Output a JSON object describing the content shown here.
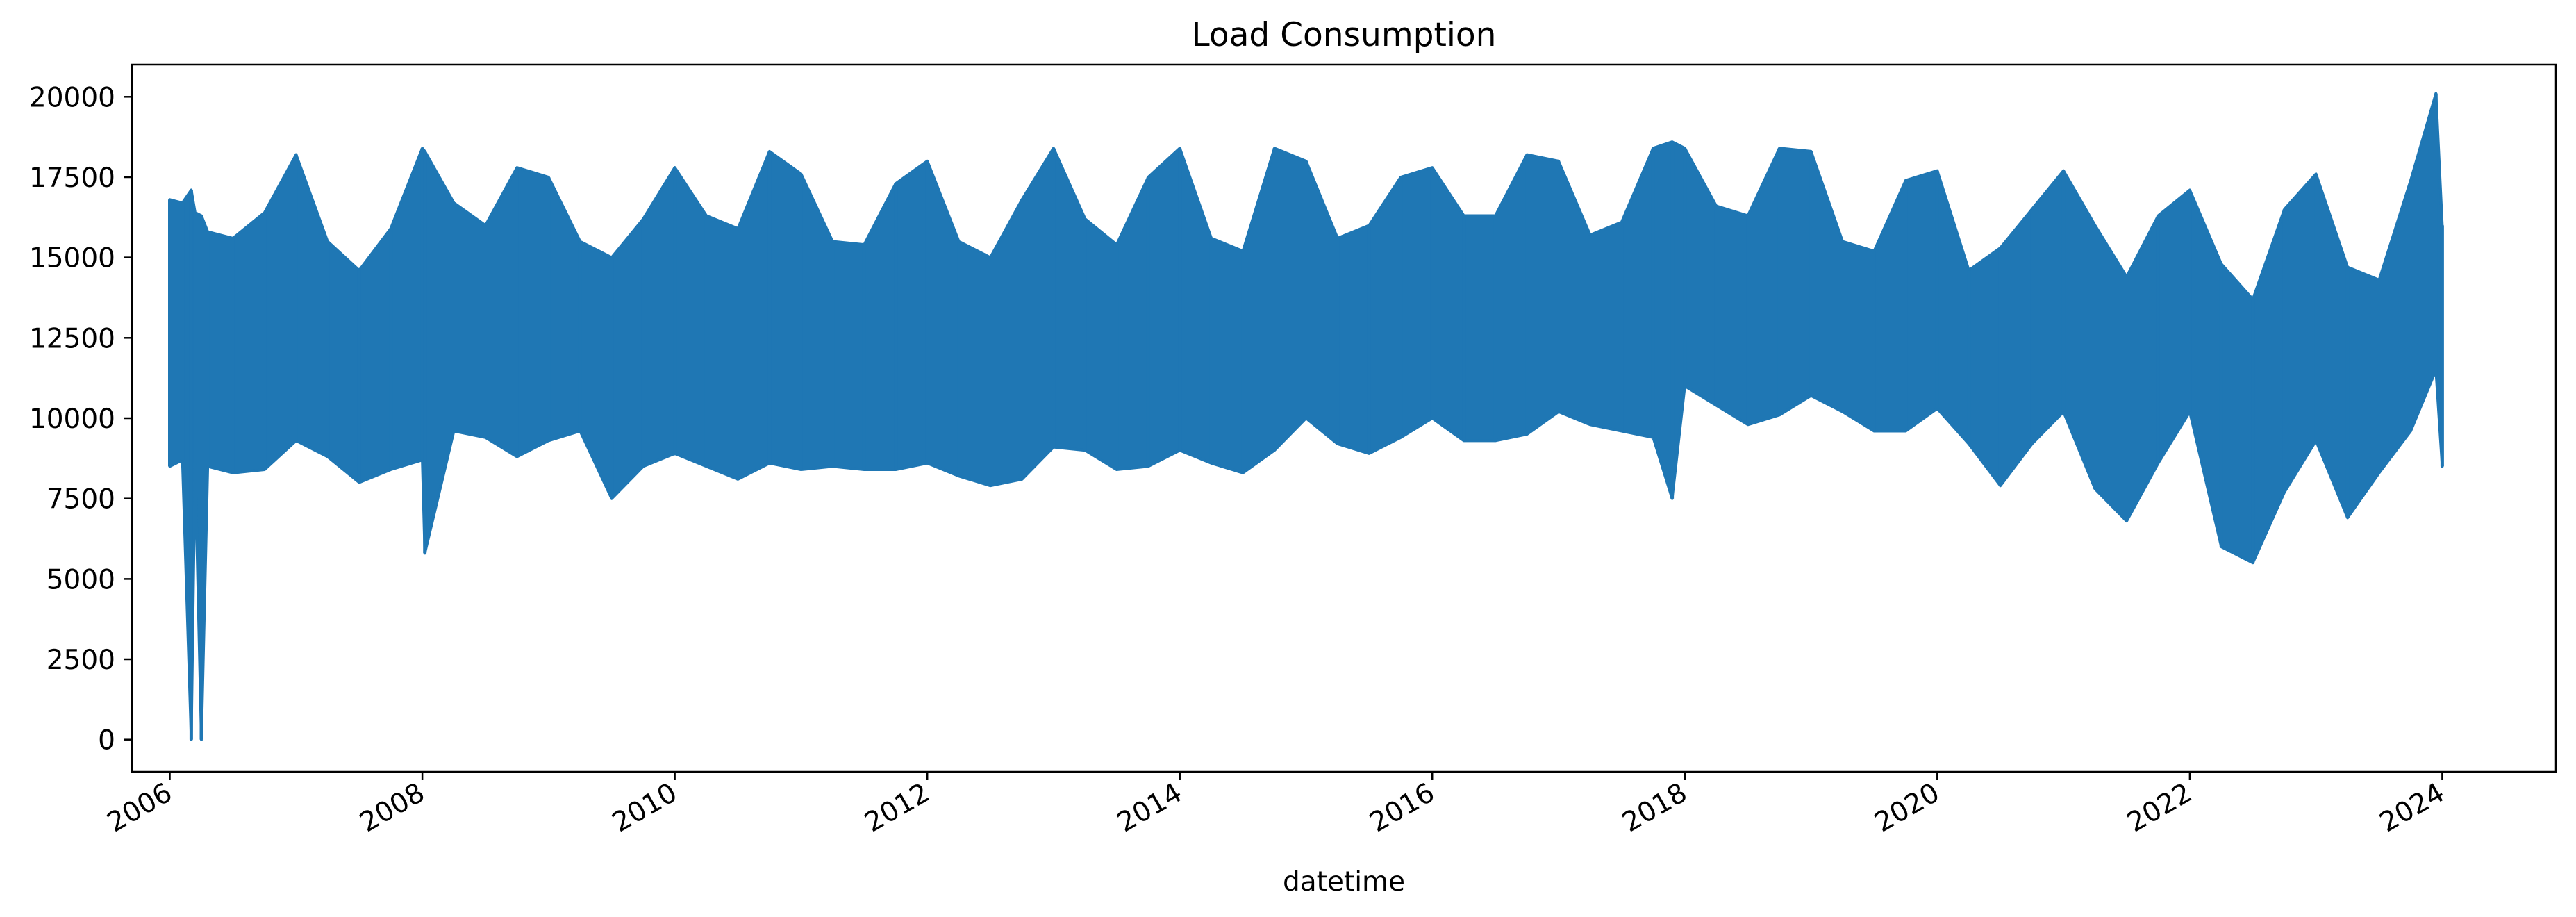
{
  "chart_data": {
    "type": "line",
    "title": "Load Consumption",
    "xlabel": "datetime",
    "ylabel": "",
    "xlim": [
      2005.7,
      2024.9
    ],
    "ylim": [
      -1000,
      21000
    ],
    "grid": false,
    "legend": "none",
    "series_color": "#1f77b4",
    "x_ticks": [
      "2006",
      "2008",
      "2010",
      "2012",
      "2014",
      "2016",
      "2018",
      "2020",
      "2022",
      "2024"
    ],
    "y_ticks": [
      "0",
      "2500",
      "5000",
      "7500",
      "10000",
      "12500",
      "15000",
      "17500",
      "20000"
    ],
    "series": [
      {
        "x": [
          2006.0,
          2006.1,
          2006.17,
          2006.2,
          2006.25,
          2006.3,
          2006.5,
          2006.75,
          2007.0,
          2007.25,
          2007.5,
          2007.75,
          2008.0,
          2008.02,
          2008.25,
          2008.5,
          2008.75,
          2009.0,
          2009.25,
          2009.5,
          2009.75,
          2010.0,
          2010.25,
          2010.5,
          2010.75,
          2011.0,
          2011.25,
          2011.5,
          2011.75,
          2012.0,
          2012.25,
          2012.5,
          2012.75,
          2013.0,
          2013.25,
          2013.5,
          2013.75,
          2014.0,
          2014.25,
          2014.5,
          2014.75,
          2015.0,
          2015.25,
          2015.5,
          2015.75,
          2016.0,
          2016.25,
          2016.5,
          2016.75,
          2017.0,
          2017.25,
          2017.5,
          2017.75,
          2017.9,
          2018.0,
          2018.25,
          2018.5,
          2018.75,
          2019.0,
          2019.25,
          2019.5,
          2019.75,
          2020.0,
          2020.25,
          2020.5,
          2020.75,
          2021.0,
          2021.25,
          2021.5,
          2021.75,
          2022.0,
          2022.25,
          2022.5,
          2022.75,
          2023.0,
          2023.25,
          2023.5,
          2023.75,
          2023.95,
          2024.0
        ],
        "y_max": [
          16800,
          16700,
          17100,
          16400,
          16300,
          15800,
          15600,
          16400,
          18200,
          15500,
          14600,
          15900,
          18400,
          18300,
          16700,
          16000,
          17800,
          17500,
          15500,
          15000,
          16200,
          17800,
          16300,
          15900,
          18300,
          17600,
          15500,
          15400,
          17300,
          18000,
          15500,
          15000,
          16800,
          18400,
          16200,
          15400,
          17500,
          18400,
          15600,
          15200,
          18400,
          18000,
          15600,
          16000,
          17500,
          17800,
          16300,
          16300,
          18200,
          18000,
          15700,
          16100,
          18400,
          18600,
          18400,
          16600,
          16300,
          18400,
          18300,
          15500,
          15200,
          17400,
          17700,
          14600,
          15300,
          16500,
          17700,
          16000,
          14400,
          16300,
          17100,
          14800,
          13700,
          16500,
          17600,
          14700,
          14300,
          17400,
          20100,
          16000
        ],
        "y_min": [
          8500,
          8700,
          0,
          8600,
          0,
          8500,
          8300,
          8400,
          9300,
          8800,
          8000,
          8400,
          8700,
          5800,
          9600,
          9400,
          8800,
          9300,
          9600,
          7500,
          8500,
          8900,
          8500,
          8100,
          8600,
          8400,
          8500,
          8400,
          8400,
          8600,
          8200,
          7900,
          8100,
          9100,
          9000,
          8400,
          8500,
          9000,
          8600,
          8300,
          9000,
          10000,
          9200,
          8900,
          9400,
          10000,
          9300,
          9300,
          9500,
          10200,
          9800,
          9600,
          9400,
          7500,
          11000,
          10400,
          9800,
          10100,
          10700,
          10200,
          9600,
          9600,
          10300,
          9200,
          7900,
          9200,
          10200,
          7800,
          6800,
          8600,
          10200,
          6000,
          5500,
          7700,
          9300,
          6900,
          8300,
          9600,
          11500,
          8500
        ]
      }
    ]
  }
}
